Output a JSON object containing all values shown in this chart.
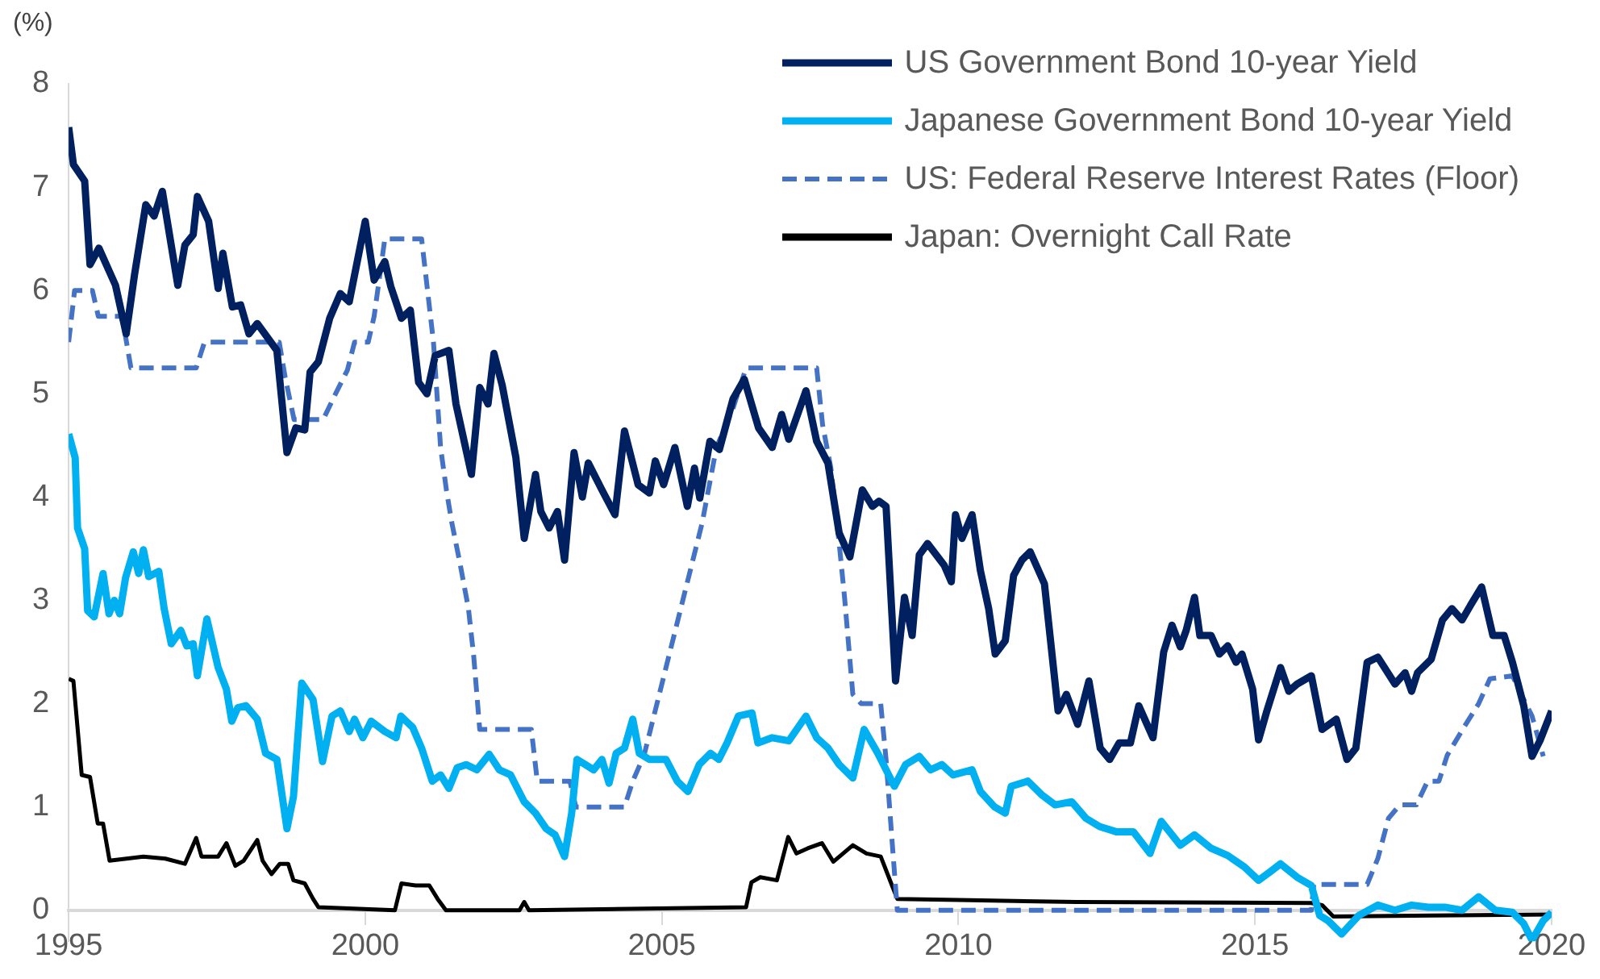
{
  "chart_data": {
    "type": "line",
    "ylabel": "(%)",
    "xlim": [
      1995,
      2020
    ],
    "xticks": [
      1995,
      2000,
      2005,
      2010,
      2015,
      2020
    ],
    "ylim": [
      -0.3,
      8
    ],
    "yticks": [
      0,
      1,
      2,
      3,
      4,
      5,
      6,
      7,
      8
    ],
    "grid": false,
    "legend": "top right",
    "marker": "none",
    "series": [
      {
        "name": "US Government Bond 10-year Yield",
        "color": "#002060",
        "line_style": "solid",
        "x": [
          1995.0,
          1995.08,
          1995.27,
          1995.36,
          1995.51,
          1995.79,
          1995.97,
          1996.11,
          1996.3,
          1996.44,
          1996.58,
          1996.84,
          1996.96,
          1997.1,
          1997.17,
          1997.36,
          1997.52,
          1997.6,
          1997.76,
          1997.9,
          1998.04,
          1998.18,
          1998.51,
          1998.68,
          1998.83,
          1998.98,
          1999.07,
          1999.21,
          1999.4,
          1999.58,
          1999.73,
          2000.0,
          2000.15,
          2000.33,
          2000.43,
          2000.61,
          2000.76,
          2000.9,
          2001.04,
          2001.18,
          2001.41,
          2001.53,
          2001.79,
          2001.93,
          2002.07,
          2002.17,
          2002.31,
          2002.54,
          2002.68,
          2002.87,
          2002.96,
          2003.1,
          2003.24,
          2003.36,
          2003.52,
          2003.66,
          2003.76,
          2003.99,
          2004.21,
          2004.37,
          2004.6,
          2004.79,
          2004.89,
          2005.03,
          2005.22,
          2005.43,
          2005.55,
          2005.64,
          2005.81,
          2005.97,
          2006.2,
          2006.39,
          2006.63,
          2006.86,
          2007.02,
          2007.14,
          2007.43,
          2007.61,
          2007.8,
          2007.99,
          2008.17,
          2008.38,
          2008.55,
          2008.66,
          2008.78,
          2008.94,
          2009.09,
          2009.22,
          2009.34,
          2009.48,
          2009.76,
          2009.88,
          2009.95,
          2010.06,
          2010.23,
          2010.37,
          2010.51,
          2010.62,
          2010.79,
          2010.93,
          2011.07,
          2011.21,
          2011.45,
          2011.68,
          2011.82,
          2012.01,
          2012.2,
          2012.39,
          2012.55,
          2012.71,
          2012.9,
          2013.04,
          2013.28,
          2013.46,
          2013.6,
          2013.74,
          2013.84,
          2013.98,
          2014.07,
          2014.26,
          2014.4,
          2014.54,
          2014.68,
          2014.78,
          2014.96,
          2015.06,
          2015.2,
          2015.43,
          2015.57,
          2015.71,
          2015.95,
          2016.13,
          2016.37,
          2016.55,
          2016.7,
          2016.89,
          2017.07,
          2017.36,
          2017.53,
          2017.64,
          2017.74,
          2017.97,
          2018.16,
          2018.32,
          2018.49,
          2018.63,
          2018.82,
          2019.01,
          2019.2,
          2019.34,
          2019.53,
          2019.67,
          2019.81,
          2020.0
        ],
        "values": [
          7.58,
          7.22,
          7.06,
          6.25,
          6.41,
          6.05,
          5.58,
          6.15,
          6.83,
          6.72,
          6.96,
          6.05,
          6.44,
          6.54,
          6.91,
          6.67,
          6.02,
          6.36,
          5.84,
          5.86,
          5.58,
          5.68,
          5.42,
          4.43,
          4.67,
          4.65,
          5.21,
          5.31,
          5.73,
          5.97,
          5.89,
          6.67,
          6.1,
          6.28,
          6.04,
          5.73,
          5.81,
          5.11,
          5.0,
          5.37,
          5.42,
          4.9,
          4.22,
          5.06,
          4.9,
          5.39,
          5.08,
          4.38,
          3.6,
          4.22,
          3.86,
          3.7,
          3.86,
          3.39,
          4.43,
          4.0,
          4.33,
          4.07,
          3.83,
          4.64,
          4.12,
          4.04,
          4.35,
          4.12,
          4.48,
          3.91,
          4.28,
          3.99,
          4.54,
          4.46,
          4.95,
          5.14,
          4.67,
          4.48,
          4.8,
          4.56,
          5.03,
          4.54,
          4.33,
          3.65,
          3.42,
          4.07,
          3.91,
          3.96,
          3.91,
          2.22,
          3.03,
          2.66,
          3.44,
          3.55,
          3.34,
          3.18,
          3.83,
          3.6,
          3.83,
          3.29,
          2.92,
          2.48,
          2.61,
          3.24,
          3.39,
          3.47,
          3.16,
          1.93,
          2.09,
          1.8,
          2.22,
          1.57,
          1.46,
          1.62,
          1.62,
          1.98,
          1.67,
          2.5,
          2.76,
          2.55,
          2.71,
          3.03,
          2.66,
          2.66,
          2.48,
          2.56,
          2.4,
          2.48,
          2.14,
          1.65,
          1.93,
          2.35,
          2.12,
          2.19,
          2.27,
          1.75,
          1.85,
          1.46,
          1.57,
          2.4,
          2.45,
          2.19,
          2.3,
          2.12,
          2.3,
          2.43,
          2.81,
          2.92,
          2.81,
          2.95,
          3.13,
          2.66,
          2.66,
          2.4,
          1.98,
          1.49,
          1.65,
          1.93
        ]
      },
      {
        "name": "Japanese Government Bond 10-year Yield",
        "color": "#00b0f0",
        "line_style": "solid",
        "x": [
          1995.0,
          1995.11,
          1995.15,
          1995.27,
          1995.32,
          1995.43,
          1995.58,
          1995.68,
          1995.77,
          1995.86,
          1995.96,
          1996.09,
          1996.18,
          1996.26,
          1996.35,
          1996.52,
          1996.61,
          1996.73,
          1996.89,
          1996.99,
          1997.1,
          1997.17,
          1997.33,
          1997.52,
          1997.66,
          1997.75,
          1997.85,
          1997.99,
          1998.18,
          1998.32,
          1998.51,
          1998.68,
          1998.79,
          1998.93,
          1999.12,
          1999.28,
          1999.44,
          1999.58,
          1999.73,
          1999.82,
          1999.96,
          2000.1,
          2000.33,
          2000.52,
          2000.6,
          2000.8,
          2000.95,
          2001.13,
          2001.27,
          2001.41,
          2001.55,
          2001.7,
          2001.88,
          2002.09,
          2002.26,
          2002.45,
          2002.68,
          2002.87,
          2003.05,
          2003.2,
          2003.36,
          2003.48,
          2003.57,
          2003.71,
          2003.85,
          2003.99,
          2004.11,
          2004.23,
          2004.37,
          2004.51,
          2004.62,
          2004.79,
          2005.07,
          2005.26,
          2005.44,
          2005.63,
          2005.82,
          2005.96,
          2006.1,
          2006.29,
          2006.52,
          2006.62,
          2006.86,
          2007.14,
          2007.43,
          2007.61,
          2007.8,
          2007.99,
          2008.22,
          2008.41,
          2008.64,
          2008.92,
          2009.11,
          2009.34,
          2009.53,
          2009.72,
          2009.91,
          2010.23,
          2010.37,
          2010.61,
          2010.79,
          2010.89,
          2011.17,
          2011.4,
          2011.63,
          2011.91,
          2012.15,
          2012.38,
          2012.66,
          2012.95,
          2013.23,
          2013.42,
          2013.74,
          2013.98,
          2014.26,
          2014.54,
          2014.82,
          2015.06,
          2015.25,
          2015.43,
          2015.71,
          2015.95,
          2016.09,
          2016.23,
          2016.46,
          2016.75,
          2017.07,
          2017.36,
          2017.64,
          2017.92,
          2018.2,
          2018.49,
          2018.77,
          2019.05,
          2019.34,
          2019.53,
          2019.67,
          2019.86,
          2020.0
        ],
        "values": [
          4.61,
          4.38,
          3.7,
          3.5,
          2.9,
          2.84,
          3.26,
          2.87,
          3.0,
          2.87,
          3.22,
          3.47,
          3.26,
          3.49,
          3.23,
          3.28,
          2.92,
          2.58,
          2.71,
          2.56,
          2.58,
          2.27,
          2.82,
          2.35,
          2.14,
          1.83,
          1.96,
          1.98,
          1.85,
          1.52,
          1.46,
          0.79,
          1.1,
          2.2,
          2.04,
          1.44,
          1.88,
          1.93,
          1.73,
          1.85,
          1.67,
          1.83,
          1.73,
          1.67,
          1.88,
          1.77,
          1.57,
          1.25,
          1.31,
          1.18,
          1.38,
          1.41,
          1.36,
          1.51,
          1.36,
          1.31,
          1.05,
          0.94,
          0.79,
          0.73,
          0.52,
          0.94,
          1.46,
          1.41,
          1.36,
          1.46,
          1.23,
          1.52,
          1.57,
          1.85,
          1.52,
          1.46,
          1.46,
          1.25,
          1.15,
          1.41,
          1.52,
          1.46,
          1.62,
          1.88,
          1.91,
          1.62,
          1.67,
          1.64,
          1.88,
          1.67,
          1.57,
          1.41,
          1.28,
          1.75,
          1.52,
          1.2,
          1.41,
          1.49,
          1.36,
          1.41,
          1.31,
          1.36,
          1.15,
          1.0,
          0.94,
          1.2,
          1.25,
          1.12,
          1.02,
          1.05,
          0.89,
          0.81,
          0.76,
          0.76,
          0.55,
          0.86,
          0.63,
          0.73,
          0.6,
          0.53,
          0.42,
          0.29,
          0.37,
          0.45,
          0.32,
          0.24,
          -0.05,
          -0.1,
          -0.23,
          -0.05,
          0.05,
          0.0,
          0.05,
          0.03,
          0.03,
          0.0,
          0.13,
          0.0,
          -0.02,
          -0.13,
          -0.29,
          -0.1,
          -0.02
        ]
      },
      {
        "name": "US: Federal Reserve Interest Rates (Floor)",
        "color": "#4472c4",
        "line_style": "dashed",
        "x": [
          1995.0,
          1995.1,
          1995.4,
          1995.5,
          1995.9,
          1996.05,
          1997.15,
          1997.29,
          1998.55,
          1998.65,
          1998.8,
          1999.29,
          1999.5,
          1999.7,
          1999.82,
          2000.05,
          2000.15,
          2000.33,
          2000.95,
          2001.05,
          2001.15,
          2001.27,
          2001.37,
          2001.46,
          2001.6,
          2001.74,
          2001.83,
          2001.93,
          2002.8,
          2002.9,
          2003.45,
          2003.55,
          2004.37,
          2004.51,
          2004.7,
          2005.68,
          2005.92,
          2006.2,
          2006.42,
          2007.61,
          2007.71,
          2007.85,
          2007.99,
          2008.08,
          2008.22,
          2008.36,
          2008.69,
          2008.78,
          2008.88,
          2008.97,
          2015.95,
          2015.99,
          2016.89,
          2017.07,
          2017.25,
          2017.44,
          2017.72,
          2017.91,
          2018.1,
          2018.24,
          2018.52,
          2018.77,
          2018.96,
          2019.34,
          2019.53,
          2019.67,
          2019.86
        ],
        "values": [
          5.5,
          6.0,
          6.0,
          5.75,
          5.75,
          5.25,
          5.25,
          5.5,
          5.5,
          5.16,
          4.75,
          4.75,
          5.0,
          5.23,
          5.5,
          5.5,
          5.75,
          6.5,
          6.5,
          6.0,
          5.5,
          4.48,
          4.06,
          3.75,
          3.35,
          2.92,
          2.45,
          1.75,
          1.75,
          1.25,
          1.25,
          1.0,
          1.0,
          1.25,
          1.5,
          3.75,
          4.48,
          4.86,
          5.25,
          5.25,
          4.7,
          4.28,
          3.55,
          3.03,
          2.09,
          2.0,
          2.0,
          1.46,
          0.68,
          0.0,
          0.0,
          0.25,
          0.25,
          0.5,
          0.89,
          1.02,
          1.02,
          1.25,
          1.25,
          1.5,
          1.77,
          2.0,
          2.24,
          2.27,
          2.04,
          1.88,
          1.49
        ]
      },
      {
        "name": "Japan: Overnight Call Rate",
        "color": "#000000",
        "line_style": "solid",
        "x": [
          1995.0,
          1995.08,
          1995.22,
          1995.36,
          1995.49,
          1995.58,
          1995.69,
          1996.26,
          1996.63,
          1996.96,
          1997.15,
          1997.24,
          1997.52,
          1997.66,
          1997.81,
          1997.95,
          1998.18,
          1998.27,
          1998.42,
          1998.56,
          1998.7,
          1998.79,
          1998.98,
          1999.12,
          1999.21,
          2000.5,
          2000.61,
          2000.85,
          2001.08,
          2001.22,
          2001.36,
          2002.6,
          2002.68,
          2002.76,
          2006.42,
          2006.51,
          2006.66,
          2006.94,
          2007.13,
          2007.27,
          2007.46,
          2007.7,
          2007.89,
          2008.22,
          2008.45,
          2008.69,
          2008.88,
          2008.97,
          2010.0,
          2012.0,
          2015.95,
          2016.13,
          2016.32,
          2018.0,
          2020.0
        ],
        "values": [
          2.24,
          2.22,
          1.31,
          1.29,
          0.84,
          0.84,
          0.48,
          0.52,
          0.5,
          0.45,
          0.7,
          0.52,
          0.52,
          0.65,
          0.43,
          0.48,
          0.68,
          0.48,
          0.35,
          0.45,
          0.45,
          0.29,
          0.26,
          0.11,
          0.03,
          0.0,
          0.26,
          0.24,
          0.24,
          0.11,
          0.0,
          0.0,
          0.08,
          0.0,
          0.03,
          0.27,
          0.32,
          0.29,
          0.71,
          0.55,
          0.6,
          0.65,
          0.47,
          0.63,
          0.55,
          0.52,
          0.24,
          0.11,
          0.1,
          0.08,
          0.07,
          0.05,
          -0.06,
          -0.05,
          -0.04
        ]
      }
    ]
  }
}
